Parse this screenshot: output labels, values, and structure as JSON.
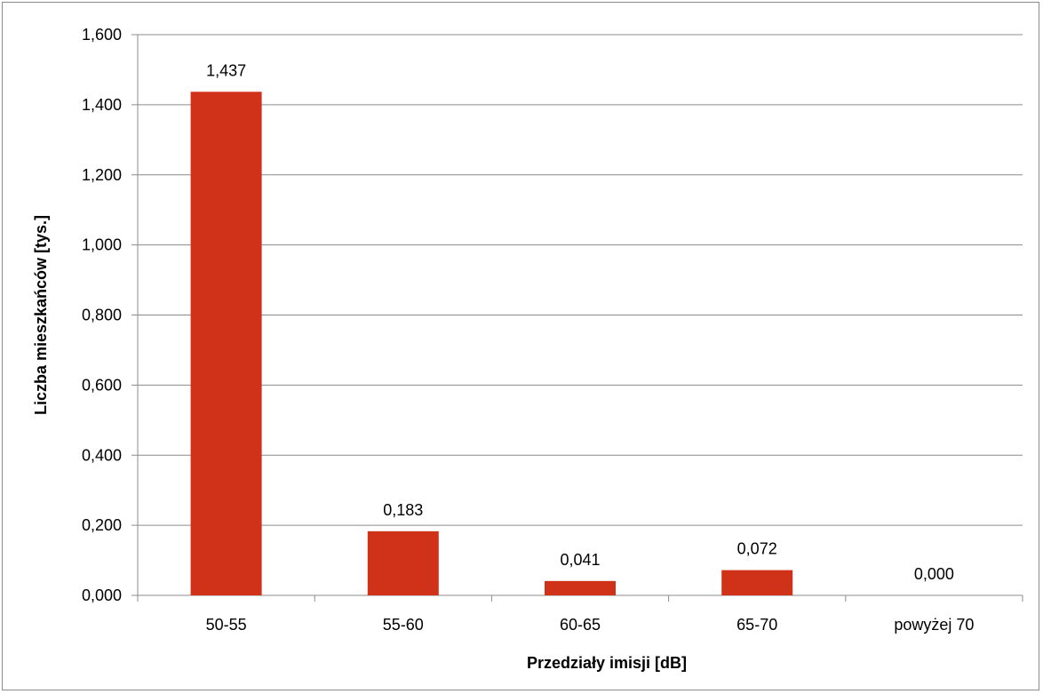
{
  "chart_data": {
    "type": "bar",
    "title": "",
    "xlabel": "Przedziały  imisji [dB]",
    "ylabel": "Liczba mieszkańców  [tys.]",
    "categories": [
      "50-55",
      "55-60",
      "60-65",
      "65-70",
      "powyżej 70"
    ],
    "values": [
      1.437,
      0.183,
      0.041,
      0.072,
      0.0
    ],
    "value_labels": [
      "1,437",
      "0,183",
      "0,041",
      "0,072",
      "0,000"
    ],
    "ylim": [
      0,
      1.6
    ],
    "yticks": [
      0,
      0.2,
      0.4,
      0.6,
      0.8,
      1.0,
      1.2,
      1.4,
      1.6
    ],
    "ytick_labels": [
      "0,000",
      "0,200",
      "0,400",
      "0,600",
      "0,800",
      "1,000",
      "1,200",
      "1,400",
      "1,600"
    ],
    "grid": true,
    "bar_color": "#d03119",
    "grid_color": "#8c8c8c"
  }
}
